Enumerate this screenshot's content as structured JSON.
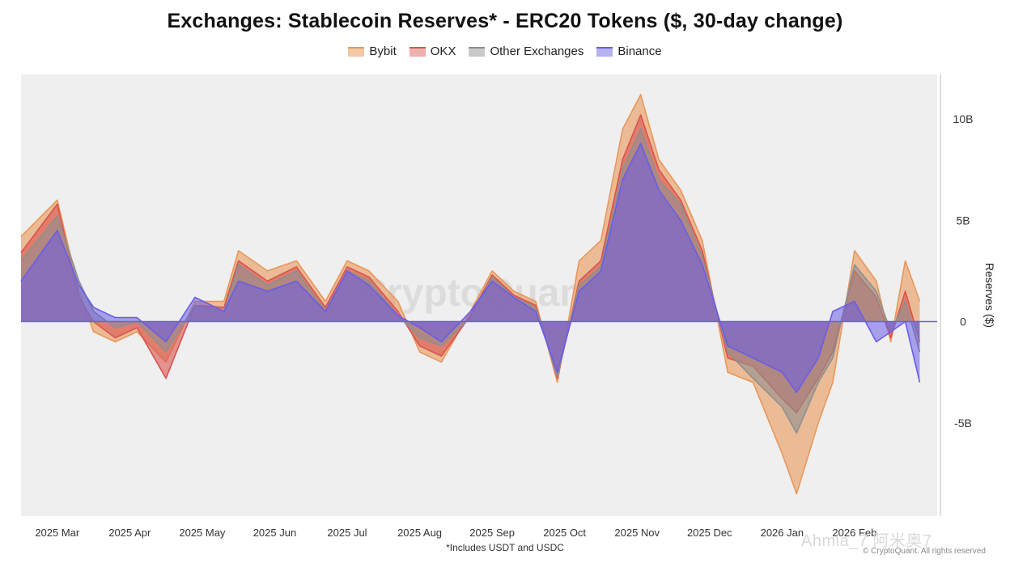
{
  "chart_data": {
    "type": "area",
    "title": "Exchanges: Stablecoin Reserves* - ERC20 Tokens ($, 30-day change)",
    "ylabel": "Reserves ($)",
    "ylim": [
      -9.6,
      12.2
    ],
    "yticks": [
      {
        "value": 10,
        "label": "10B"
      },
      {
        "value": 5,
        "label": "5B"
      },
      {
        "value": 0,
        "label": "0"
      },
      {
        "value": -5,
        "label": "-5B"
      }
    ],
    "xlim": [
      0,
      12.64
    ],
    "xticks": [
      {
        "pos": 0.5,
        "label": "2025 Mar"
      },
      {
        "pos": 1.5,
        "label": "2025 Apr"
      },
      {
        "pos": 2.5,
        "label": "2025 May"
      },
      {
        "pos": 3.5,
        "label": "2025 Jun"
      },
      {
        "pos": 4.5,
        "label": "2025 Jul"
      },
      {
        "pos": 5.5,
        "label": "2025 Aug"
      },
      {
        "pos": 6.5,
        "label": "2025 Sep"
      },
      {
        "pos": 7.5,
        "label": "2025 Oct"
      },
      {
        "pos": 8.5,
        "label": "2025 Nov"
      },
      {
        "pos": 9.5,
        "label": "2025 Dec"
      },
      {
        "pos": 10.5,
        "label": "2026 Jan"
      },
      {
        "pos": 11.5,
        "label": "2026 Feb"
      }
    ],
    "x": [
      0,
      0.5,
      0.8,
      1.0,
      1.3,
      1.6,
      2.0,
      2.4,
      2.8,
      3.0,
      3.4,
      3.8,
      4.2,
      4.5,
      4.8,
      5.2,
      5.5,
      5.8,
      6.2,
      6.5,
      6.8,
      7.1,
      7.4,
      7.7,
      8.0,
      8.3,
      8.55,
      8.8,
      9.1,
      9.4,
      9.75,
      10.1,
      10.5,
      10.7,
      11.0,
      11.2,
      11.5,
      11.8,
      12.0,
      12.2,
      12.4
    ],
    "series": [
      {
        "name": "Bybit",
        "color": "#e8975a",
        "values": [
          4.2,
          6.0,
          1.5,
          -0.5,
          -1.0,
          -0.5,
          -2.0,
          1.0,
          1.0,
          3.5,
          2.5,
          3.0,
          1.0,
          3.0,
          2.5,
          1.0,
          -1.5,
          -2.0,
          0.5,
          2.5,
          1.5,
          1.0,
          -3.0,
          3.0,
          4.0,
          9.5,
          11.2,
          8.0,
          6.5,
          4.0,
          -2.5,
          -3.0,
          -6.5,
          -8.5,
          -5.0,
          -3.0,
          3.5,
          2.0,
          -1.0,
          3.0,
          1.0
        ]
      },
      {
        "name": "OKX",
        "color": "#d9534f",
        "values": [
          3.4,
          5.8,
          1.2,
          0.0,
          -0.8,
          -0.3,
          -2.8,
          0.8,
          0.7,
          3.0,
          2.0,
          2.7,
          0.7,
          2.7,
          2.2,
          0.5,
          -1.2,
          -1.7,
          0.3,
          2.3,
          1.3,
          0.8,
          -2.8,
          2.0,
          3.0,
          8.0,
          10.2,
          7.5,
          6.0,
          3.5,
          -1.8,
          -2.2,
          -3.8,
          -4.5,
          -2.8,
          -1.5,
          2.5,
          1.2,
          -0.8,
          1.5,
          -1.0
        ]
      },
      {
        "name": "Other Exchanges",
        "color": "#8f8f8f",
        "values": [
          3.0,
          5.2,
          2.0,
          0.5,
          -0.3,
          0.0,
          -1.5,
          0.8,
          0.5,
          2.8,
          1.8,
          2.5,
          0.5,
          2.5,
          2.0,
          0.3,
          -0.8,
          -1.2,
          0.2,
          2.2,
          1.2,
          0.7,
          -2.7,
          1.8,
          2.7,
          7.5,
          9.5,
          7.0,
          5.8,
          3.2,
          -1.5,
          -2.8,
          -4.2,
          -5.5,
          -3.0,
          -1.8,
          2.8,
          1.5,
          -0.5,
          1.0,
          -1.5
        ]
      },
      {
        "name": "Binance",
        "color": "#6a5de6",
        "values": [
          2.0,
          4.5,
          1.8,
          0.7,
          0.2,
          0.2,
          -1.0,
          1.2,
          0.5,
          2.0,
          1.5,
          2.0,
          0.5,
          2.5,
          1.8,
          0.3,
          -0.3,
          -1.0,
          0.5,
          2.0,
          1.2,
          0.5,
          -2.5,
          1.5,
          2.5,
          7.0,
          8.8,
          6.5,
          5.0,
          2.8,
          -1.2,
          -1.8,
          -2.5,
          -3.5,
          -1.8,
          0.5,
          1.0,
          -1.0,
          -0.5,
          0.0,
          -3.0
        ]
      }
    ],
    "legend": [
      "Bybit",
      "OKX",
      "Other Exchanges",
      "Binance"
    ],
    "legend_position": "top-center",
    "grid": false,
    "background": "#efefef"
  },
  "footnote": "*Includes USDT and USDC",
  "watermark_center": "CryptoQuant",
  "watermark_corner": "Ahmia_7 阿米奥7",
  "credit": "© CryptoQuant. All rights reserved"
}
